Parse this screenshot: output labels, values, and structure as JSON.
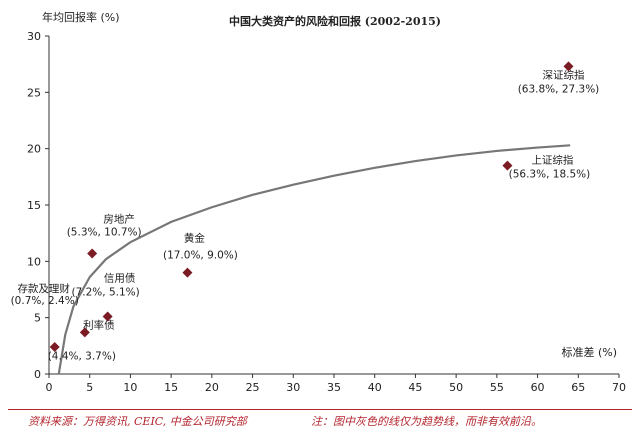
{
  "chart_data": {
    "type": "scatter",
    "title": "中国大类资产的风险和回报 (2002-2015)",
    "xlabel": "标准差 (%)",
    "ylabel": "年均回报率 (%)",
    "xlim": [
      0,
      70
    ],
    "ylim": [
      0,
      30
    ],
    "xticks": [
      "0",
      "5",
      "10",
      "15",
      "20",
      "25",
      "30",
      "35",
      "40",
      "45",
      "50",
      "55",
      "60",
      "65",
      "70"
    ],
    "yticks": [
      "0",
      "5",
      "10",
      "15",
      "20",
      "25",
      "30"
    ],
    "grid": false,
    "marker_color": "#7b1c24",
    "trend_color": "#777777",
    "points": [
      {
        "name": "存款及理财",
        "label": "(0.7%, 2.4%)",
        "x": 0.7,
        "y": 2.4
      },
      {
        "name": "利率债",
        "label": "(4.4%, 3.7%)",
        "x": 4.4,
        "y": 3.7
      },
      {
        "name": "信用债",
        "label": "(7.2%, 5.1%)",
        "x": 7.2,
        "y": 5.1
      },
      {
        "name": "房地产",
        "label": "(5.3%, 10.7%)",
        "x": 5.3,
        "y": 10.7
      },
      {
        "name": "黄金",
        "label": "(17.0%, 9.0%)",
        "x": 17.0,
        "y": 9.0
      },
      {
        "name": "上证综指",
        "label": "(56.3%, 18.5%)",
        "x": 56.3,
        "y": 18.5
      },
      {
        "name": "深证综指",
        "label": "(63.8%, 27.3%)",
        "x": 63.8,
        "y": 27.3
      }
    ],
    "trend_line": {
      "x": [
        1.2,
        2,
        3,
        5,
        7,
        10,
        15,
        20,
        25,
        30,
        35,
        40,
        45,
        50,
        55,
        60,
        64
      ],
      "y": [
        0,
        3.5,
        6.0,
        8.6,
        10.2,
        11.7,
        13.5,
        14.8,
        15.9,
        16.8,
        17.6,
        18.3,
        18.9,
        19.4,
        19.8,
        20.1,
        20.3
      ]
    }
  },
  "footer": {
    "source": "资料来源：万得资讯, CEIC, 中金公司研究部",
    "note": "注：图中灰色的线仅为趋势线，而非有效前沿。"
  }
}
